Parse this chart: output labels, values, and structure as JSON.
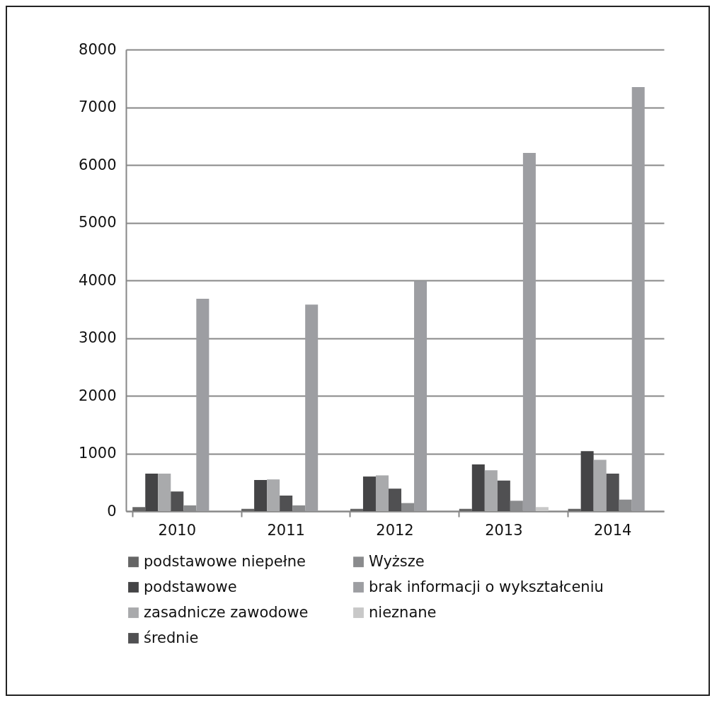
{
  "chart_data": {
    "type": "bar",
    "categories": [
      "2010",
      "2011",
      "2012",
      "2013",
      "2014"
    ],
    "series": [
      {
        "name": "podstawowe niepełne",
        "color": "#656565",
        "values": [
          70,
          40,
          40,
          40,
          40
        ]
      },
      {
        "name": "podstawowe",
        "color": "#444446",
        "values": [
          650,
          540,
          600,
          810,
          1040
        ]
      },
      {
        "name": "zasadnicze zawodowe",
        "color": "#a9aaac",
        "values": [
          650,
          550,
          620,
          710,
          890
        ]
      },
      {
        "name": "średnie",
        "color": "#505052",
        "values": [
          340,
          270,
          390,
          530,
          650
        ]
      },
      {
        "name": "Wyższe",
        "color": "#8a8b8d",
        "values": [
          100,
          100,
          140,
          180,
          200
        ]
      },
      {
        "name": "brak informacji o wykształceniu",
        "color": "#9d9ea2",
        "values": [
          3680,
          3580,
          3990,
          6210,
          7350
        ]
      },
      {
        "name": "nieznane",
        "color": "#c8c8c8",
        "values": [
          0,
          0,
          0,
          70,
          0
        ]
      }
    ],
    "ylim": [
      0,
      8000
    ],
    "yticks": [
      0,
      1000,
      2000,
      3000,
      4000,
      5000,
      6000,
      7000,
      8000
    ],
    "grid": "y",
    "legend": "bottom"
  }
}
